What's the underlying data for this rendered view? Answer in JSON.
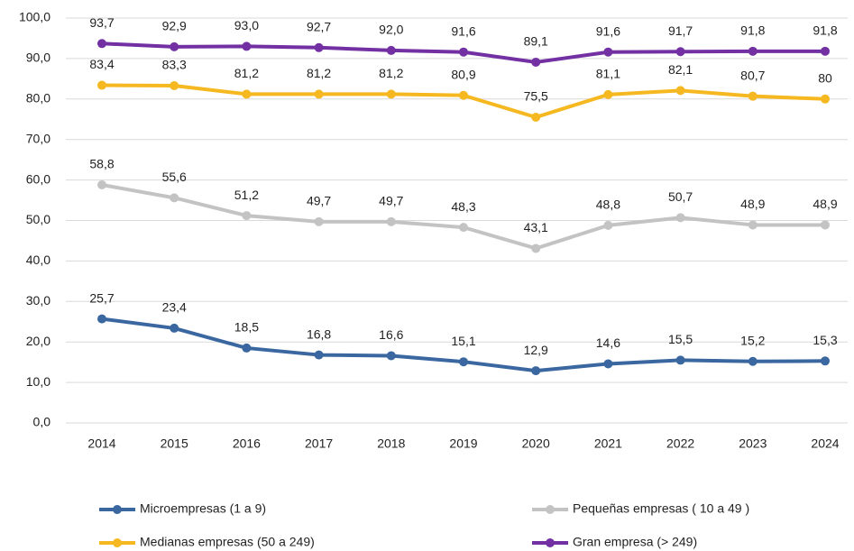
{
  "chart_data": {
    "type": "line",
    "categories": [
      "2014",
      "2015",
      "2016",
      "2017",
      "2018",
      "2019",
      "2020",
      "2021",
      "2022",
      "2023",
      "2024"
    ],
    "ylim": [
      0,
      100
    ],
    "yticks": [
      {
        "value": 0,
        "label": "0,0"
      },
      {
        "value": 10,
        "label": "10,0"
      },
      {
        "value": 20,
        "label": "20,0"
      },
      {
        "value": 30,
        "label": "30,0"
      },
      {
        "value": 40,
        "label": "40,0"
      },
      {
        "value": 50,
        "label": "50,0"
      },
      {
        "value": 60,
        "label": "60,0"
      },
      {
        "value": 70,
        "label": "70,0"
      },
      {
        "value": 80,
        "label": "80,0"
      },
      {
        "value": 90,
        "label": "90,0"
      },
      {
        "value": 100,
        "label": "100,0"
      }
    ],
    "grid": true,
    "series": [
      {
        "name": "Microempresas (1 a 9)",
        "color": "#3a67a0",
        "values": [
          25.7,
          23.4,
          18.5,
          16.8,
          16.6,
          15.1,
          12.9,
          14.6,
          15.5,
          15.2,
          15.3
        ],
        "value_labels": [
          "25,7",
          "23,4",
          "18,5",
          "16,8",
          "16,6",
          "15,1",
          "12,9",
          "14,6",
          "15,5",
          "15,2",
          "15,3"
        ]
      },
      {
        "name": "Pequeñas empresas ( 10 a 49 )",
        "color": "#c3c3c3",
        "values": [
          58.8,
          55.6,
          51.2,
          49.7,
          49.7,
          48.3,
          43.1,
          48.8,
          50.7,
          48.9,
          48.9
        ],
        "value_labels": [
          "58,8",
          "55,6",
          "51,2",
          "49,7",
          "49,7",
          "48,3",
          "43,1",
          "48,8",
          "50,7",
          "48,9",
          "48,9"
        ]
      },
      {
        "name": "Medianas empresas (50 a 249)",
        "color": "#f5b820",
        "values": [
          83.4,
          83.3,
          81.2,
          81.2,
          81.2,
          80.9,
          75.5,
          81.1,
          82.1,
          80.7,
          80
        ],
        "value_labels": [
          "83,4",
          "83,3",
          "81,2",
          "81,2",
          "81,2",
          "80,9",
          "75,5",
          "81,1",
          "82,1",
          "80,7",
          "80"
        ]
      },
      {
        "name": "Gran empresa (> 249)",
        "color": "#7330a3",
        "values": [
          93.7,
          92.9,
          93.0,
          92.7,
          92.0,
          91.6,
          89.1,
          91.6,
          91.7,
          91.8,
          91.8
        ],
        "value_labels": [
          "93,7",
          "92,9",
          "93,0",
          "92,7",
          "92,0",
          "91,6",
          "89,1",
          "91,6",
          "91,7",
          "91,8",
          "91,8"
        ]
      }
    ]
  }
}
